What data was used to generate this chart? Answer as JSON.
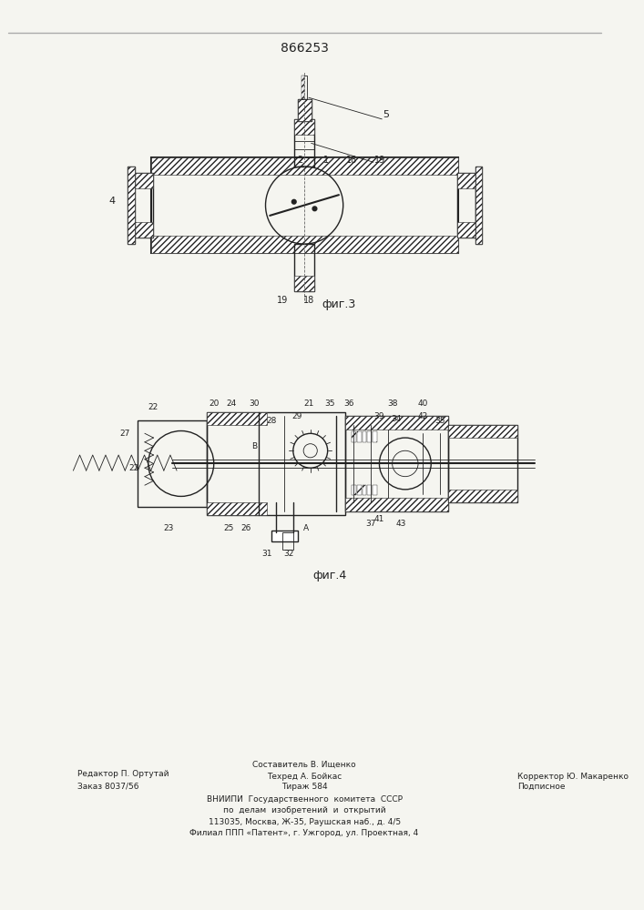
{
  "patent_number": "866253",
  "background_color": "#f5f5f0",
  "border_color": "#888888",
  "drawing_color": "#222222",
  "fig3_label": "фиг.3",
  "fig4_label": "фиг.4",
  "footer": {
    "line1_left": "Редактор П. Ортутай",
    "line1_center": "Составитель В. Ищенко",
    "line1_right": "",
    "line2_left": "Заказ 8037/56",
    "line2_center": "Техред А. Бойкас",
    "line2_right": "Корректор Ю. Макаренко",
    "line3_left": "",
    "line3_center": "Тираж 584",
    "line3_right": "Подписное",
    "line4": "ВНИИПИ  Государственного  комитета  СССР",
    "line5": "по  делам  изобретений  и  открытий",
    "line6": "113035, Москва, Ж-35, Раушская наб., д. 4/5",
    "line7": "Филиал ППП «Патент», г. Ужгород, ул. Проектная, 4"
  }
}
